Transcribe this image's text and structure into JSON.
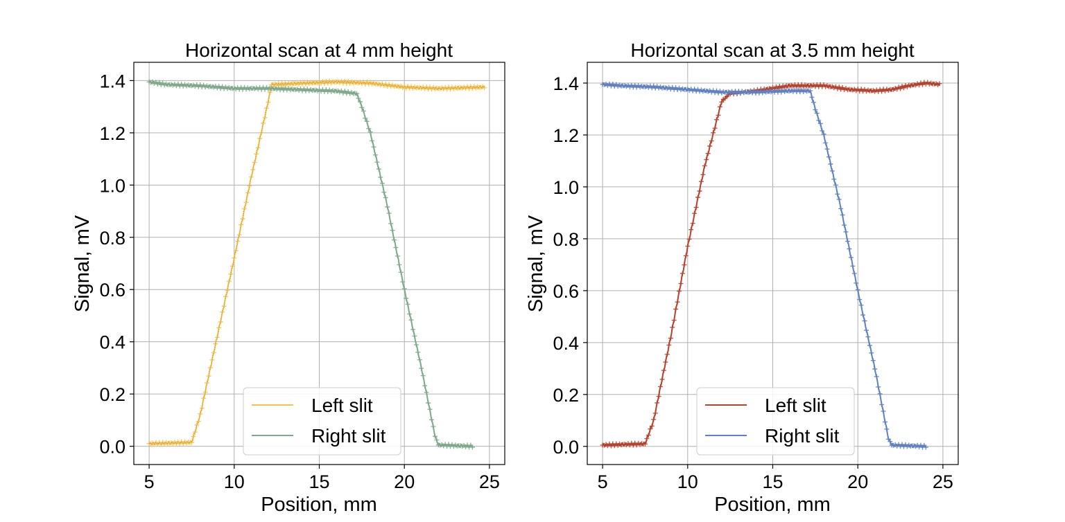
{
  "chart_data": [
    {
      "type": "line",
      "title": "Horizontal scan at 4 mm height",
      "xlabel": "Position, mm",
      "ylabel": "Signal, mV",
      "xlim": [
        4.1,
        25.9
      ],
      "ylim": [
        -0.07,
        1.47
      ],
      "xticks": [
        5,
        10,
        15,
        20,
        25
      ],
      "xtick_labels": [
        "5",
        "10",
        "15",
        "20",
        "25"
      ],
      "yticks": [
        0.0,
        0.2,
        0.4,
        0.6,
        0.8,
        1.0,
        1.2,
        1.4
      ],
      "ytick_labels": [
        "0.0",
        "0.2",
        "0.4",
        "0.6",
        "0.8",
        "1.0",
        "1.2",
        "1.4"
      ],
      "grid": true,
      "legend": "lower-center",
      "marker": "+",
      "series": [
        {
          "name": "Left slit",
          "color": "#f7c04a",
          "x": [
            5.0,
            7.5,
            8.0,
            9.0,
            10.0,
            11.0,
            12.0,
            12.2,
            14.0,
            16.0,
            18.0,
            20.0,
            22.0,
            24.7
          ],
          "y": [
            0.01,
            0.015,
            0.12,
            0.42,
            0.72,
            1.03,
            1.32,
            1.385,
            1.39,
            1.395,
            1.39,
            1.375,
            1.37,
            1.375
          ]
        },
        {
          "name": "Right slit",
          "color": "#7fa88a",
          "x": [
            5.0,
            6.0,
            8.0,
            10.0,
            12.0,
            14.0,
            16.0,
            17.2,
            17.5,
            18.0,
            19.0,
            20.0,
            21.0,
            21.8,
            22.0,
            24.0
          ],
          "y": [
            1.395,
            1.385,
            1.38,
            1.37,
            1.37,
            1.365,
            1.36,
            1.35,
            1.3,
            1.2,
            0.92,
            0.6,
            0.3,
            0.04,
            0.005,
            0.0
          ]
        }
      ]
    },
    {
      "type": "line",
      "title": "Horizontal scan at 3.5 mm height",
      "xlabel": "Position, mm",
      "ylabel": "Signal, mV",
      "xlim": [
        4.1,
        25.9
      ],
      "ylim": [
        -0.07,
        1.48
      ],
      "xticks": [
        5,
        10,
        15,
        20,
        25
      ],
      "xtick_labels": [
        "5",
        "10",
        "15",
        "20",
        "25"
      ],
      "yticks": [
        0.0,
        0.2,
        0.4,
        0.6,
        0.8,
        1.0,
        1.2,
        1.4
      ],
      "ytick_labels": [
        "0.0",
        "0.2",
        "0.4",
        "0.6",
        "0.8",
        "1.0",
        "1.2",
        "1.4"
      ],
      "grid": true,
      "legend": "lower-center",
      "marker": "+",
      "series": [
        {
          "name": "Left slit",
          "color": "#b5412c",
          "x": [
            5.0,
            7.5,
            8.0,
            9.0,
            10.0,
            11.0,
            12.0,
            12.5,
            14.0,
            16.0,
            18.0,
            19.5,
            21.0,
            22.0,
            23.0,
            24.0,
            24.8
          ],
          "y": [
            0.005,
            0.01,
            0.1,
            0.42,
            0.77,
            1.08,
            1.33,
            1.36,
            1.37,
            1.39,
            1.39,
            1.375,
            1.37,
            1.375,
            1.39,
            1.4,
            1.395
          ]
        },
        {
          "name": "Right slit",
          "color": "#5f80c0",
          "x": [
            5.0,
            6.0,
            8.0,
            10.0,
            12.0,
            14.0,
            16.0,
            17.2,
            17.5,
            18.0,
            19.0,
            20.0,
            21.0,
            21.8,
            22.0,
            24.0
          ],
          "y": [
            1.395,
            1.39,
            1.385,
            1.375,
            1.365,
            1.365,
            1.37,
            1.37,
            1.3,
            1.2,
            0.92,
            0.6,
            0.3,
            0.03,
            0.005,
            0.0
          ]
        }
      ]
    }
  ]
}
